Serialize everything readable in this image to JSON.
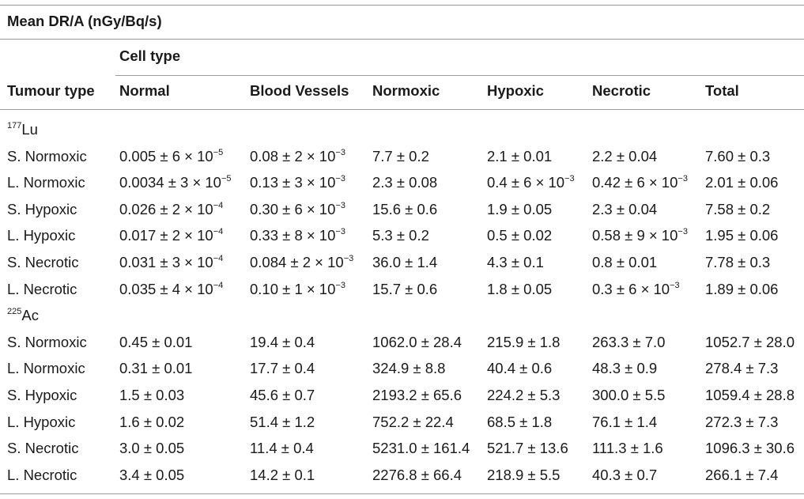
{
  "title": "Mean DR/A (nGy/Bq/s)",
  "cell_type_label": "Cell type",
  "columns": [
    "Tumour type",
    "Normal",
    "Blood Vessels",
    "Normoxic",
    "Hypoxic",
    "Necrotic",
    "Total"
  ],
  "groups": [
    {
      "mass": "177",
      "element": "Lu",
      "rows": [
        {
          "label": "S. Normoxic",
          "cells": [
            "0.005 ± 6 × 10^−5",
            "0.08 ± 2 × 10^−3",
            "7.7 ± 0.2",
            "2.1 ± 0.01",
            "2.2 ± 0.04",
            "7.60 ± 0.3"
          ]
        },
        {
          "label": "L. Normoxic",
          "cells": [
            "0.0034 ± 3 × 10^−5",
            "0.13 ± 3 × 10^−3",
            "2.3 ± 0.08",
            "0.4 ± 6 × 10^−3",
            "0.42 ± 6 × 10^−3",
            "2.01 ± 0.06"
          ]
        },
        {
          "label": "S. Hypoxic",
          "cells": [
            "0.026 ± 2 × 10^−4",
            "0.30 ± 6 × 10^−3",
            "15.6 ± 0.6",
            "1.9 ± 0.05",
            "2.3 ± 0.04",
            "7.58 ± 0.2"
          ]
        },
        {
          "label": "L. Hypoxic",
          "cells": [
            "0.017 ± 2 × 10^−4",
            "0.33 ± 8 × 10^−3",
            "5.3 ± 0.2",
            "0.5 ± 0.02",
            "0.58 ± 9 × 10^−3",
            "1.95 ± 0.06"
          ]
        },
        {
          "label": "S. Necrotic",
          "cells": [
            "0.031 ± 3 × 10^−4",
            "0.084 ± 2 × 10^−3",
            "36.0 ± 1.4",
            "4.3 ± 0.1",
            "0.8 ± 0.01",
            "7.78 ± 0.3"
          ]
        },
        {
          "label": "L. Necrotic",
          "cells": [
            "0.035 ± 4 × 10^−4",
            "0.10 ± 1 × 10^−3",
            "15.7 ± 0.6",
            "1.8 ± 0.05",
            "0.3 ± 6 × 10^−3",
            "1.89 ± 0.06"
          ]
        }
      ]
    },
    {
      "mass": "225",
      "element": "Ac",
      "rows": [
        {
          "label": "S. Normoxic",
          "cells": [
            "0.45 ± 0.01",
            "19.4 ± 0.4",
            "1062.0 ± 28.4",
            "215.9 ± 1.8",
            "263.3 ± 7.0",
            "1052.7 ± 28.0"
          ]
        },
        {
          "label": "L. Normoxic",
          "cells": [
            "0.31 ± 0.01",
            "17.7 ± 0.4",
            "324.9 ± 8.8",
            "40.4 ± 0.6",
            "48.3 ± 0.9",
            "278.4 ± 7.3"
          ]
        },
        {
          "label": "S. Hypoxic",
          "cells": [
            "1.5 ± 0.03",
            "45.6 ± 0.7",
            "2193.2 ± 65.6",
            "224.2 ± 5.3",
            "300.0 ± 5.5",
            "1059.4 ± 28.8"
          ]
        },
        {
          "label": "L. Hypoxic",
          "cells": [
            "1.6 ± 0.02",
            "51.4 ± 1.2",
            "752.2 ± 22.4",
            "68.5 ± 1.8",
            "76.1 ± 1.4",
            "272.3 ± 7.3"
          ]
        },
        {
          "label": "S. Necrotic",
          "cells": [
            "3.0 ± 0.05",
            "11.4 ± 0.4",
            "5231.0 ± 161.4",
            "521.7 ± 13.6",
            "111.3 ± 1.6",
            "1096.3 ± 30.6"
          ]
        },
        {
          "label": "L. Necrotic",
          "cells": [
            "3.4 ± 0.05",
            "14.2 ± 0.1",
            "2276.8 ± 66.4",
            "218.9 ± 5.5",
            "40.3 ± 0.7",
            "266.1 ± 7.4"
          ]
        }
      ]
    }
  ]
}
